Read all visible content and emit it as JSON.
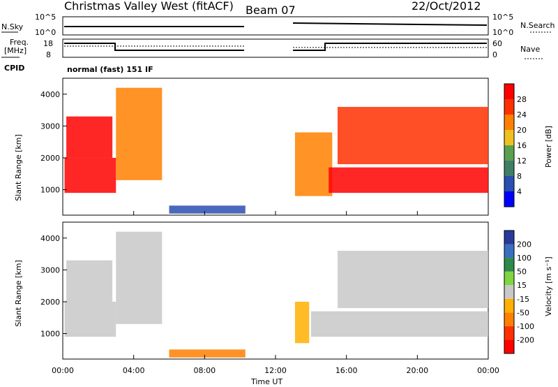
{
  "header": {
    "site": "Christmas Valley West (fitACF)",
    "beam": "Beam 07",
    "date": "22/Oct/2012"
  },
  "sky_panel": {
    "left_label": "N.Sky",
    "right_label": "N.Search",
    "left_ticks": [
      "10^5",
      "10^0"
    ],
    "right_ticks": [
      "10^5",
      "10^0"
    ]
  },
  "freq_panel": {
    "left_label_1": "Freq.",
    "left_label_2": "[MHz]",
    "right_label": "Nave",
    "left_ticks": [
      "18",
      "8"
    ],
    "right_ticks": [
      "60",
      "0"
    ]
  },
  "cpid": {
    "label": "CPID",
    "mode": "normal (fast) 151 IF"
  },
  "colors": {
    "power": [
      "#0000ff",
      "#2a4fb0",
      "#3f7f66",
      "#5aa050",
      "#f0c020",
      "#ff8000",
      "#ff3000",
      "#ff0000"
    ],
    "velocity": [
      "#2a3a9a",
      "#3a6fc0",
      "#2e8a4a",
      "#7fd640",
      "#c8c8c8",
      "#ffb000",
      "#ff7f00",
      "#ff3000",
      "#ff0000"
    ]
  },
  "chart_data": [
    {
      "type": "heatmap",
      "title": "Power",
      "ylabel": "Slant Range [km]",
      "colorbar_label": "Power [dB]",
      "colorbar_ticks": [
        "28",
        "24",
        "20",
        "16",
        "12",
        "8",
        "4"
      ],
      "yticks": [
        "4000",
        "3000",
        "2000",
        "1000"
      ],
      "ylim": [
        200,
        4500
      ],
      "xlim": [
        0,
        24
      ],
      "regions": [
        {
          "x0": 0.1,
          "x1": 3.0,
          "y0": 900,
          "y1": 2000,
          "value": 30
        },
        {
          "x0": 0.2,
          "x1": 2.8,
          "y0": 2000,
          "y1": 3300,
          "value": 28
        },
        {
          "x0": 3.0,
          "x1": 5.6,
          "y0": 1300,
          "y1": 4200,
          "value": 22
        },
        {
          "x0": 6.0,
          "x1": 10.3,
          "y0": 250,
          "y1": 500,
          "value": 6
        },
        {
          "x0": 13.1,
          "x1": 15.2,
          "y0": 800,
          "y1": 2800,
          "value": 20
        },
        {
          "x0": 15.0,
          "x1": 24.0,
          "y0": 900,
          "y1": 1700,
          "value": 30
        },
        {
          "x0": 15.5,
          "x1": 24.0,
          "y0": 1800,
          "y1": 3600,
          "value": 26
        }
      ]
    },
    {
      "type": "heatmap",
      "title": "Velocity",
      "ylabel": "Slant Range [km]",
      "colorbar_label": "Velocity [m s⁻¹]",
      "colorbar_ticks": [
        "200",
        "100",
        "50",
        "15",
        "-15",
        "-50",
        "-100",
        "-200"
      ],
      "yticks": [
        "4000",
        "3000",
        "2000",
        "1000"
      ],
      "ylim": [
        200,
        4500
      ],
      "xlim": [
        0,
        24
      ],
      "xticks": [
        "00:00",
        "04:00",
        "08:00",
        "12:00",
        "16:00",
        "20:00",
        "00:00"
      ],
      "xlabel": "Time UT",
      "regions": [
        {
          "x0": 0.1,
          "x1": 3.0,
          "y0": 900,
          "y1": 2000,
          "value": 0
        },
        {
          "x0": 0.2,
          "x1": 2.8,
          "y0": 2000,
          "y1": 3300,
          "value": 0
        },
        {
          "x0": 3.0,
          "x1": 5.6,
          "y0": 1300,
          "y1": 4200,
          "value": 0
        },
        {
          "x0": 6.0,
          "x1": 10.3,
          "y0": 250,
          "y1": 500,
          "value": -60
        },
        {
          "x0": 13.1,
          "x1": 13.9,
          "y0": 700,
          "y1": 2000,
          "value": -50
        },
        {
          "x0": 14.0,
          "x1": 24.0,
          "y0": 900,
          "y1": 1700,
          "value": 0
        },
        {
          "x0": 15.5,
          "x1": 24.0,
          "y0": 1800,
          "y1": 3600,
          "value": 0
        }
      ]
    }
  ]
}
